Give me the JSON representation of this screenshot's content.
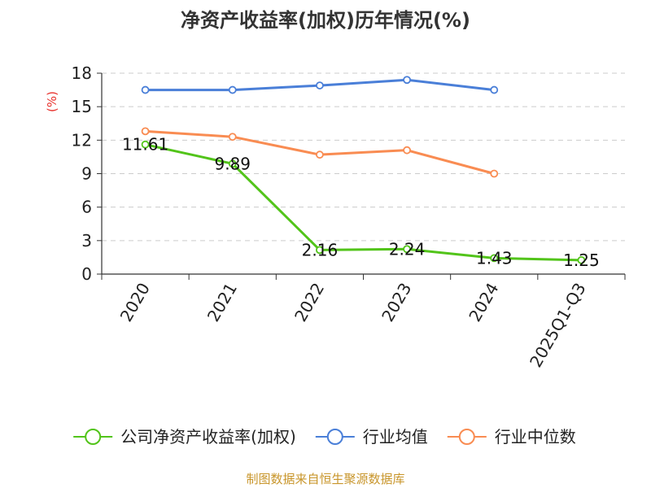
{
  "chart_data": {
    "type": "line",
    "title": "净资产收益率(加权)历年情况(%)",
    "ylabel": "(%)",
    "xlabel": "",
    "categories": [
      "2020",
      "2021",
      "2022",
      "2023",
      "2024",
      "2025Q1-Q3"
    ],
    "yticks": [
      0,
      3,
      6,
      9,
      12,
      15,
      18
    ],
    "ylim": [
      0,
      18
    ],
    "grid": true,
    "legend_position": "bottom",
    "series": [
      {
        "name": "公司净资产收益率(加权)",
        "color": "#52c41a",
        "values": [
          11.61,
          9.89,
          2.16,
          2.24,
          1.43,
          1.25
        ],
        "labels": [
          "11.61",
          "9.89",
          "2.16",
          "2.24",
          "1.43",
          "1.25"
        ]
      },
      {
        "name": "行业均值",
        "color": "#4a7fd8",
        "values": [
          16.5,
          16.5,
          16.9,
          17.4,
          16.5,
          null
        ]
      },
      {
        "name": "行业中位数",
        "color": "#f98c52",
        "values": [
          12.8,
          12.3,
          10.7,
          11.1,
          9.0,
          null
        ]
      }
    ],
    "source": "制图数据来自恒生聚源数据库"
  }
}
